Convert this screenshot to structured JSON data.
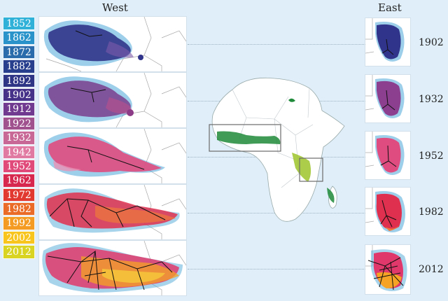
{
  "titles": {
    "west": "West",
    "east": "East"
  },
  "legend": [
    {
      "year": "1852",
      "color": "#2fb1d8"
    },
    {
      "year": "1862",
      "color": "#2a93c9"
    },
    {
      "year": "1872",
      "color": "#2a6cab"
    },
    {
      "year": "1882",
      "color": "#283f8d"
    },
    {
      "year": "1892",
      "color": "#2f3585"
    },
    {
      "year": "1902",
      "color": "#463288"
    },
    {
      "year": "1912",
      "color": "#6f3a8f"
    },
    {
      "year": "1922",
      "color": "#a0528f"
    },
    {
      "year": "1932",
      "color": "#c76896"
    },
    {
      "year": "1942",
      "color": "#e17aa2"
    },
    {
      "year": "1952",
      "color": "#e04a7b"
    },
    {
      "year": "1962",
      "color": "#d7284f"
    },
    {
      "year": "1972",
      "color": "#e1392f"
    },
    {
      "year": "1982",
      "color": "#ea6a27"
    },
    {
      "year": "1992",
      "color": "#f39b22"
    },
    {
      "year": "2002",
      "color": "#f7c51e"
    },
    {
      "year": "2012",
      "color": "#d9d421"
    }
  ],
  "east_panels": [
    {
      "year": "1902"
    },
    {
      "year": "1932"
    },
    {
      "year": "1952"
    },
    {
      "year": "1982"
    },
    {
      "year": "2012"
    }
  ]
}
